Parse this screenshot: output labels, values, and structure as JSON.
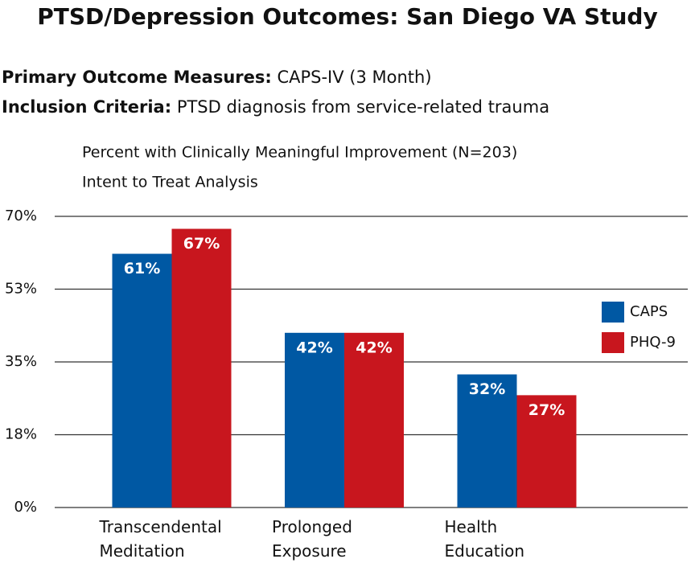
{
  "header": {
    "title": "PTSD/Depression Outcomes: San Diego VA Study",
    "lines": [
      {
        "label": "Primary Outcome Measures:",
        "text": "CAPS-IV (3 Month)"
      },
      {
        "label": "Inclusion Criteria:",
        "text": "PTSD diagnosis from service-related trauma"
      }
    ]
  },
  "chart_data": {
    "type": "bar",
    "title": "Percent with Clinically Meaningful Improvement (N=203)",
    "subtitle": "Intent to Treat Analysis",
    "categories": [
      "Transcendental Meditation",
      "Prolonged Exposure",
      "Health Education"
    ],
    "series": [
      {
        "name": "CAPS",
        "color": "#0058a3",
        "values": [
          61,
          42,
          32
        ],
        "value_labels": [
          "61%",
          "42%",
          "32%"
        ]
      },
      {
        "name": "PHQ-9",
        "color": "#c8161e",
        "values": [
          67,
          42,
          27
        ],
        "value_labels": [
          "67%",
          "42%",
          "27%"
        ]
      }
    ],
    "ylim": [
      0,
      70
    ],
    "yticks": [
      {
        "value": 0,
        "label": "0%"
      },
      {
        "value": 17.5,
        "label": "18%"
      },
      {
        "value": 35,
        "label": "35%"
      },
      {
        "value": 52.5,
        "label": "53%"
      },
      {
        "value": 70,
        "label": "70%"
      }
    ],
    "grid": true,
    "legend": "right"
  }
}
